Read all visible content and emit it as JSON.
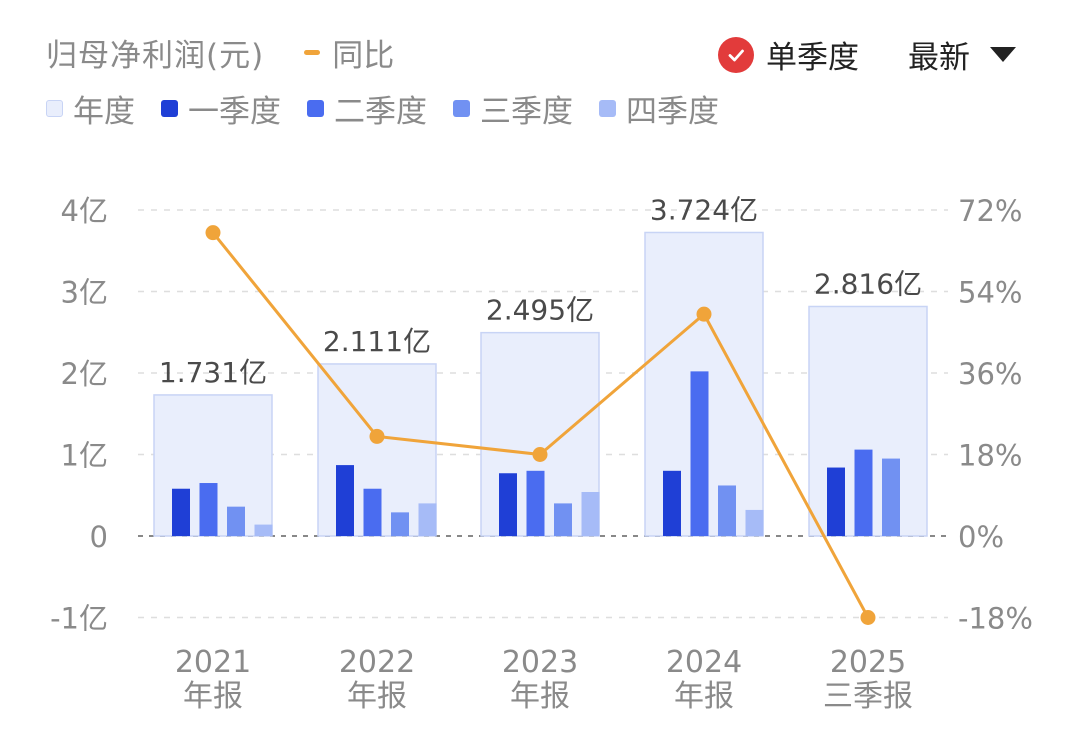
{
  "header": {
    "title": "归母净利润(元)",
    "yoy_label": "同比",
    "mode_label": "单季度",
    "sort_label": "最新"
  },
  "legend": [
    {
      "key": "annual",
      "label": "年度"
    },
    {
      "key": "q1",
      "label": "一季度"
    },
    {
      "key": "q2",
      "label": "二季度"
    },
    {
      "key": "q3",
      "label": "三季度"
    },
    {
      "key": "q4",
      "label": "四季度"
    }
  ],
  "colors": {
    "annual_fill": "#e9eefc",
    "annual_stroke": "#c8d4f5",
    "q1": "#1f3fd6",
    "q2": "#4a6cf0",
    "q3": "#7191f2",
    "q4": "#a6bbf7",
    "yoy": "#f0a43a",
    "check": "#e23b3b",
    "grid": "#dedede",
    "axis_text": "#8a8a8a",
    "label_text": "#4a4a4a"
  },
  "chart_data": {
    "type": "bar",
    "categories": [
      {
        "year": "2021",
        "period": "年报"
      },
      {
        "year": "2022",
        "period": "年报"
      },
      {
        "year": "2023",
        "period": "年报"
      },
      {
        "year": "2024",
        "period": "年报"
      },
      {
        "year": "2025",
        "period": "三季报"
      }
    ],
    "annual": [
      1.731,
      2.111,
      2.495,
      3.724,
      2.816
    ],
    "annual_labels": [
      "1.731亿",
      "2.111亿",
      "2.495亿",
      "3.724亿",
      "2.816亿"
    ],
    "series": [
      {
        "name": "一季度",
        "values": [
          0.58,
          0.87,
          0.77,
          0.8,
          0.84
        ]
      },
      {
        "name": "二季度",
        "values": [
          0.65,
          0.58,
          0.8,
          2.02,
          1.06
        ]
      },
      {
        "name": "三季度",
        "values": [
          0.36,
          0.29,
          0.4,
          0.62,
          0.95
        ]
      },
      {
        "name": "四季度",
        "values": [
          0.14,
          0.4,
          0.54,
          0.32,
          null
        ]
      }
    ],
    "yoy": {
      "name": "同比",
      "values": [
        67,
        22,
        18,
        49,
        -18
      ],
      "unit": "%"
    },
    "y_left": {
      "min": -1,
      "max": 4,
      "ticks": [
        -1,
        0,
        1,
        2,
        3,
        4
      ],
      "tick_labels": [
        "-1亿",
        "0",
        "1亿",
        "2亿",
        "3亿",
        "4亿"
      ]
    },
    "y_right": {
      "min": -18,
      "max": 72,
      "ticks": [
        -18,
        0,
        18,
        36,
        54,
        72
      ],
      "tick_labels": [
        "-18%",
        "0%",
        "18%",
        "36%",
        "54%",
        "72%"
      ]
    },
    "grid": true
  }
}
